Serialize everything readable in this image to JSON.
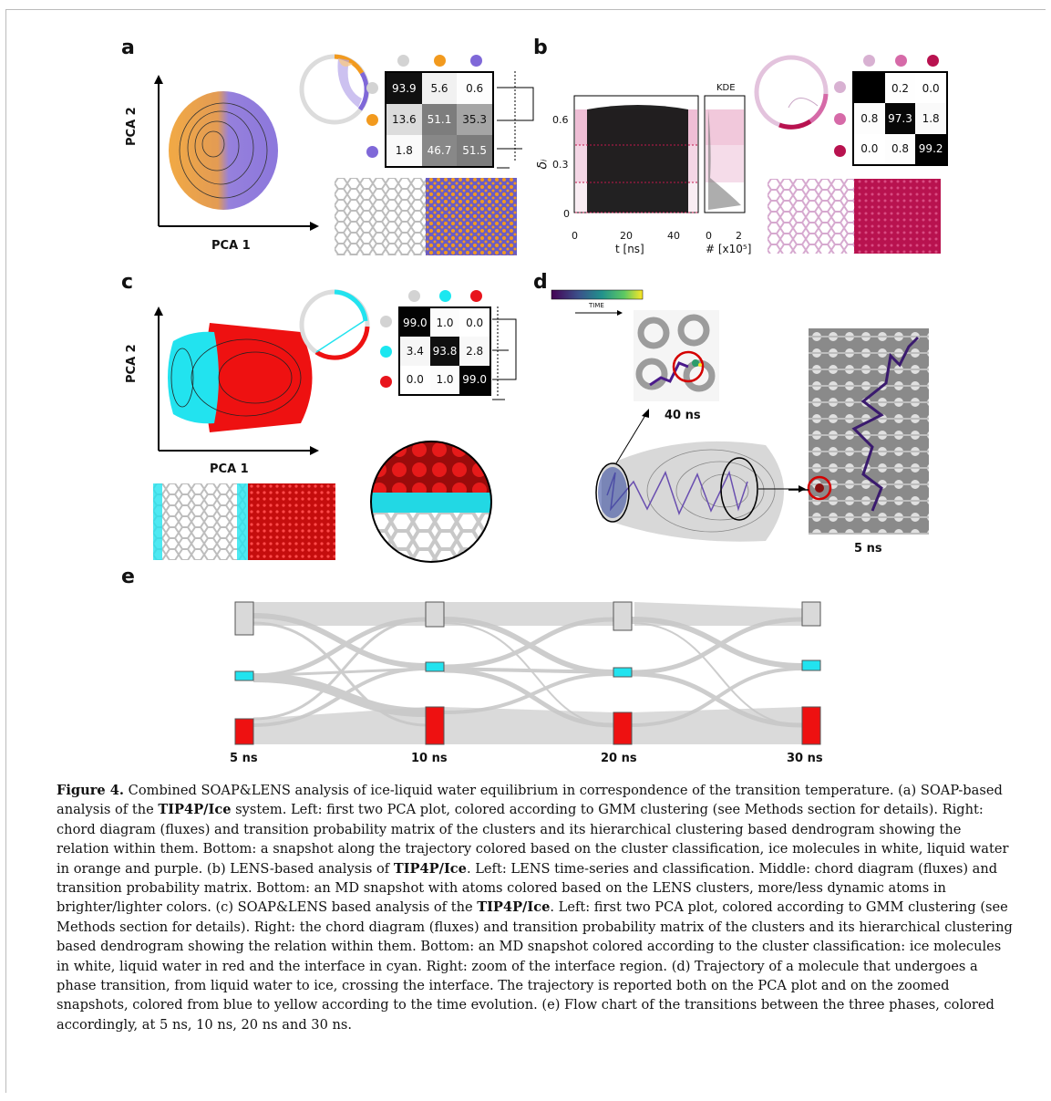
{
  "panels": {
    "a": {
      "letter": "a",
      "xlabel": "PCA 1",
      "ylabel": "PCA 2",
      "matrix": {
        "dot_colors": [
          "#d3d3d3",
          "#f29a1e",
          "#7f68d8"
        ],
        "rows": [
          [
            "93.9",
            "5.6",
            "0.6"
          ],
          [
            "13.6",
            "51.1",
            "35.3"
          ],
          [
            "1.8",
            "46.7",
            "51.5"
          ]
        ]
      },
      "dendro_scale": "1"
    },
    "b": {
      "letter": "b",
      "ylabel": "δᵢ",
      "yticks": [
        "0.6",
        "0.3",
        "0"
      ],
      "xticks": [
        "0",
        "20",
        "40"
      ],
      "xlabel": "t [ns]",
      "kde_title": "KDE",
      "kde_xticks": [
        "0",
        "2"
      ],
      "kde_xlabel": "# [x10⁵]",
      "matrix": {
        "dot_colors": [
          "#d8b1d2",
          "#d66aa8",
          "#b8124f"
        ],
        "rows": [
          [
            "",
            "0.2",
            "0.0"
          ],
          [
            "0.8",
            "97.3",
            "1.8"
          ],
          [
            "0.0",
            "0.8",
            "99.2"
          ]
        ]
      }
    },
    "c": {
      "letter": "c",
      "xlabel": "PCA 1",
      "ylabel": "PCA 2",
      "matrix": {
        "dot_colors": [
          "#d3d3d3",
          "#1be7f0",
          "#e8141c"
        ],
        "rows": [
          [
            "99.0",
            "1.0",
            "0.0"
          ],
          [
            "3.4",
            "93.8",
            "2.8"
          ],
          [
            "0.0",
            "1.0",
            "99.0"
          ]
        ]
      },
      "dendro_scale": "1"
    },
    "d": {
      "letter": "d",
      "colorbar_label": "TIME",
      "snap_top_label": "40 ns",
      "snap_right_label": "5 ns"
    },
    "e": {
      "letter": "e",
      "times": [
        "5 ns",
        "10 ns",
        "20 ns",
        "30 ns"
      ],
      "colors": {
        "ice": "#d9d9d9",
        "interface": "#22e3ef",
        "liquid": "#ee1111"
      }
    }
  },
  "caption": {
    "figure_label": "Figure 4.",
    "s1": " Combined SOAP&LENS analysis of ice-liquid water equilibrium in correspondence of the transition temperature. (a) SOAP-based analysis of the ",
    "b1": "TIP4P/Ice",
    "s2": " system. Left: first two PCA plot, colored according to GMM clustering (see Methods section for details). Right: chord diagram (fluxes) and transition probability matrix of the clusters and its hierarchical clustering based dendrogram showing the relation within them. Bottom: a snapshot along the trajectory colored based on the cluster classification, ice molecules in white, liquid water in orange and purple. (b) LENS-based analysis of ",
    "b2": "TIP4P/Ice",
    "s3": ". Left: LENS time-series and classification. Middle: chord diagram (fluxes) and transition probability matrix. Bottom: an MD snapshot with atoms colored based on the LENS clusters, more/less dynamic atoms in brighter/lighter colors. (c) SOAP&LENS based analysis of the ",
    "b3": "TIP4P/Ice",
    "s4": ". Left: first two PCA plot, colored according to GMM clustering (see Methods section for details). Right: the chord diagram (fluxes) and transition probability matrix of the clusters and its hierarchical clustering based dendrogram showing the relation within them. Bottom: an MD snapshot colored according to the cluster classification: ice molecules in white, liquid water in red and the interface in cyan. Right: zoom of the interface region. (d) Trajectory of a molecule that undergoes a phase transition, from liquid water to ice, crossing the interface. The trajectory is reported both on the PCA plot and on the zoomed snapshots, colored from blue to yellow according to the time evolution. (e) Flow chart of the transitions between the three phases, colored accordingly, at 5 ns, 10 ns, 20 ns and 30 ns."
  }
}
